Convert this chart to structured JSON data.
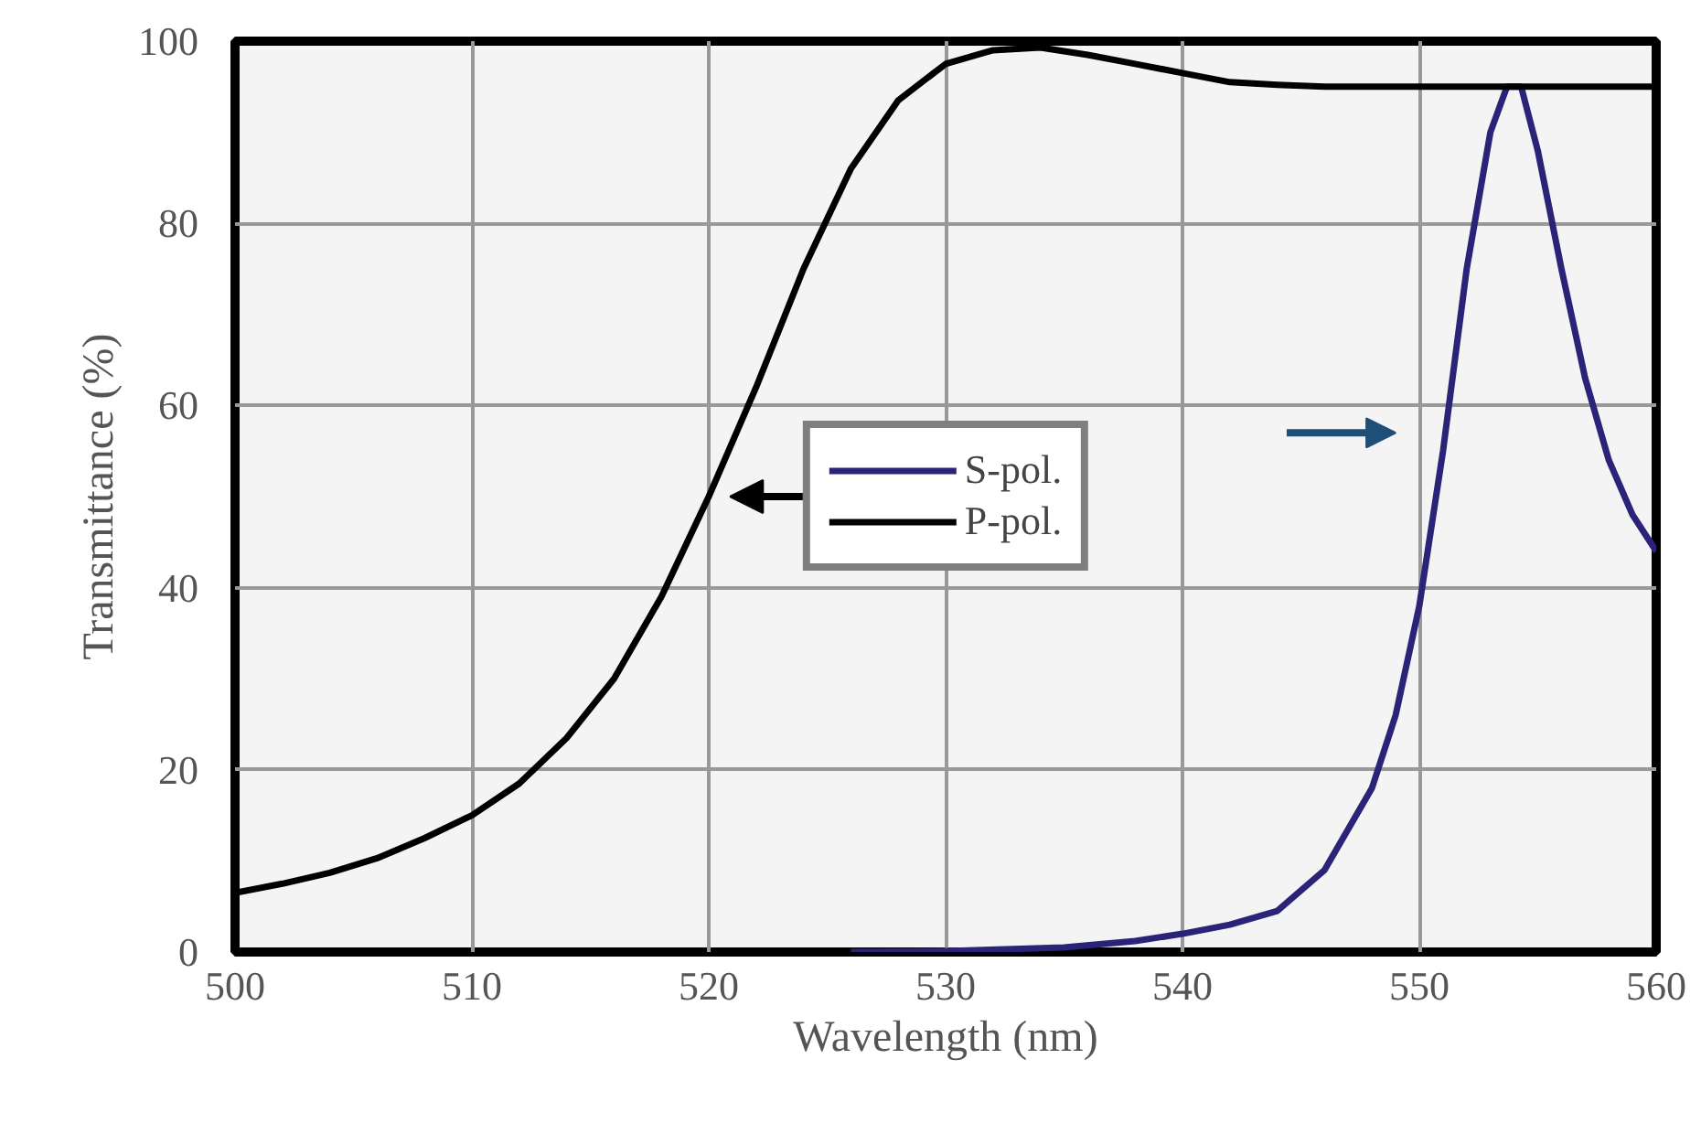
{
  "chart_data": {
    "type": "line",
    "xlabel": "Wavelength (nm)",
    "ylabel": "Transmittance (%)",
    "xlim": [
      500,
      560
    ],
    "ylim": [
      0,
      100
    ],
    "xticks": [
      500,
      510,
      520,
      530,
      540,
      550,
      560
    ],
    "yticks": [
      0,
      20,
      40,
      60,
      80,
      100
    ],
    "grid": true,
    "legend": "center",
    "line_style": "solid",
    "marker": "none",
    "series": [
      {
        "name": "S-pol.",
        "color": "#2a2377",
        "x": [
          526,
          530,
          535,
          538,
          540,
          542,
          544,
          546,
          548,
          549,
          550,
          551,
          552,
          553,
          553.7,
          554.3,
          555,
          556,
          557,
          558,
          559,
          560
        ],
        "values": [
          0,
          0.1,
          0.5,
          1.2,
          2,
          3,
          4.5,
          9,
          18,
          26,
          38,
          55,
          75,
          90,
          95,
          95,
          88,
          75,
          63,
          54,
          48,
          44
        ]
      },
      {
        "name": "P-pol.",
        "color": "#000000",
        "x": [
          500,
          502,
          504,
          506,
          508,
          510,
          512,
          514,
          516,
          518,
          520,
          522,
          524,
          526,
          528,
          530,
          532,
          534,
          536,
          538,
          540,
          542,
          544,
          546,
          560
        ],
        "values": [
          6.5,
          7.5,
          8.7,
          10.3,
          12.5,
          15,
          18.5,
          23.5,
          30,
          39,
          50,
          62,
          75,
          86,
          93.5,
          97.5,
          99,
          99.3,
          98.5,
          97.5,
          96.5,
          95.5,
          95.2,
          95,
          95
        ]
      }
    ]
  }
}
